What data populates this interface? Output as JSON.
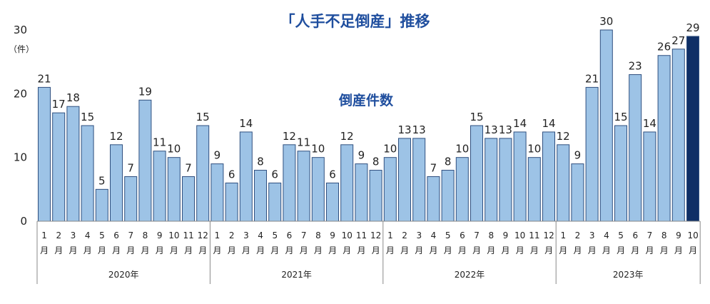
{
  "chart_data": {
    "type": "bar",
    "title": "「人手不足倒産」推移",
    "subtitle": "倒産件数",
    "ylabel": "（件）",
    "ylim": [
      0,
      30
    ],
    "yticks": [
      0,
      10,
      20,
      30
    ],
    "month_suffix": "月",
    "years": [
      "2020年",
      "2021年",
      "2022年",
      "2023年"
    ],
    "categories": [
      "2020年1月",
      "2020年2月",
      "2020年3月",
      "2020年4月",
      "2020年5月",
      "2020年6月",
      "2020年7月",
      "2020年8月",
      "2020年9月",
      "2020年10月",
      "2020年11月",
      "2020年12月",
      "2021年1月",
      "2021年2月",
      "2021年3月",
      "2021年4月",
      "2021年5月",
      "2021年6月",
      "2021年7月",
      "2021年8月",
      "2021年9月",
      "2021年10月",
      "2021年11月",
      "2021年12月",
      "2022年1月",
      "2022年2月",
      "2022年3月",
      "2022年4月",
      "2022年5月",
      "2022年6月",
      "2022年7月",
      "2022年8月",
      "2022年9月",
      "2022年10月",
      "2022年11月",
      "2022年12月",
      "2023年1月",
      "2023年2月",
      "2023年3月",
      "2023年4月",
      "2023年5月",
      "2023年6月",
      "2023年7月",
      "2023年8月",
      "2023年9月",
      "2023年10月"
    ],
    "months": [
      "1",
      "2",
      "3",
      "4",
      "5",
      "6",
      "7",
      "8",
      "9",
      "10",
      "11",
      "12",
      "1",
      "2",
      "3",
      "4",
      "5",
      "6",
      "7",
      "8",
      "9",
      "10",
      "11",
      "12",
      "1",
      "2",
      "3",
      "4",
      "5",
      "6",
      "7",
      "8",
      "9",
      "10",
      "11",
      "12",
      "1",
      "2",
      "3",
      "4",
      "5",
      "6",
      "7",
      "8",
      "9",
      "10"
    ],
    "values": [
      21,
      17,
      18,
      15,
      5,
      12,
      7,
      19,
      11,
      10,
      7,
      15,
      9,
      6,
      14,
      8,
      6,
      12,
      11,
      10,
      6,
      12,
      9,
      8,
      10,
      13,
      13,
      7,
      8,
      10,
      15,
      13,
      13,
      14,
      10,
      14,
      12,
      9,
      21,
      30,
      15,
      23,
      14,
      26,
      27,
      29
    ],
    "highlight_index": 45,
    "colors": {
      "bar": "#9dc3e6",
      "bar_border": "#2f4f7f",
      "highlight": "#0f2f66",
      "axis": "#888888"
    }
  }
}
